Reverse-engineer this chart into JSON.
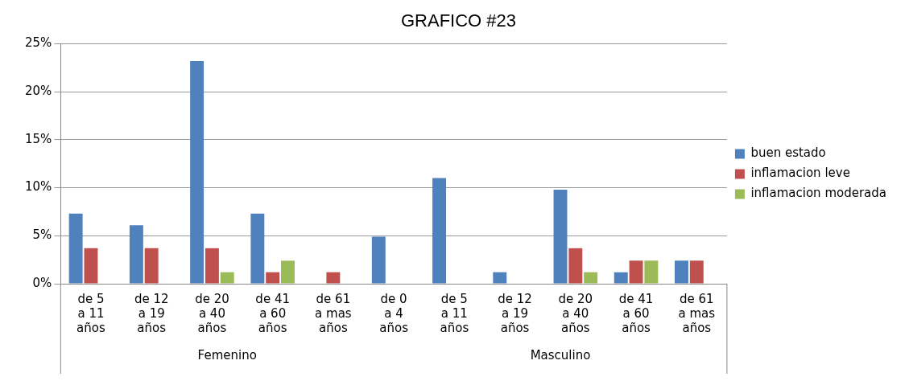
{
  "chart_data": {
    "type": "bar",
    "title": "GRAFICO #23",
    "categories": [
      "de 5 a 11 años",
      "de 12 a 19 años",
      "de 20 a 40 años",
      "de 41 a 60 años",
      "de 61 a mas años",
      "de 0 a 4 años",
      "de 5 a 11 años",
      "de 12 a 19 años",
      "de 20 a 40 años",
      "de 41 a 60 años",
      "de 61 a mas años"
    ],
    "series": [
      {
        "name": "buen estado",
        "color": "#4f81bd",
        "values": [
          7.3,
          6.1,
          23.2,
          7.3,
          0,
          4.9,
          11.0,
          1.2,
          9.8,
          1.2,
          2.4
        ]
      },
      {
        "name": "inflamacion leve",
        "color": "#c0504d",
        "values": [
          3.7,
          3.7,
          3.7,
          1.2,
          1.2,
          0,
          0,
          0,
          3.7,
          2.4,
          2.4
        ]
      },
      {
        "name": "inflamacion moderada",
        "color": "#9bbb59",
        "values": [
          0,
          0,
          1.2,
          2.4,
          0,
          0,
          0,
          0,
          1.2,
          2.4,
          0
        ]
      }
    ],
    "ylim": [
      0,
      25
    ],
    "yticks": [
      {
        "value": 0,
        "label": "0%"
      },
      {
        "value": 5,
        "label": "5%"
      },
      {
        "value": 10,
        "label": "10%"
      },
      {
        "value": 15,
        "label": "15%"
      },
      {
        "value": 20,
        "label": "20%"
      },
      {
        "value": 25,
        "label": "25%"
      }
    ],
    "grid": "y",
    "legend": "right",
    "annotations": [
      "Femenino",
      "Masculino"
    ]
  }
}
